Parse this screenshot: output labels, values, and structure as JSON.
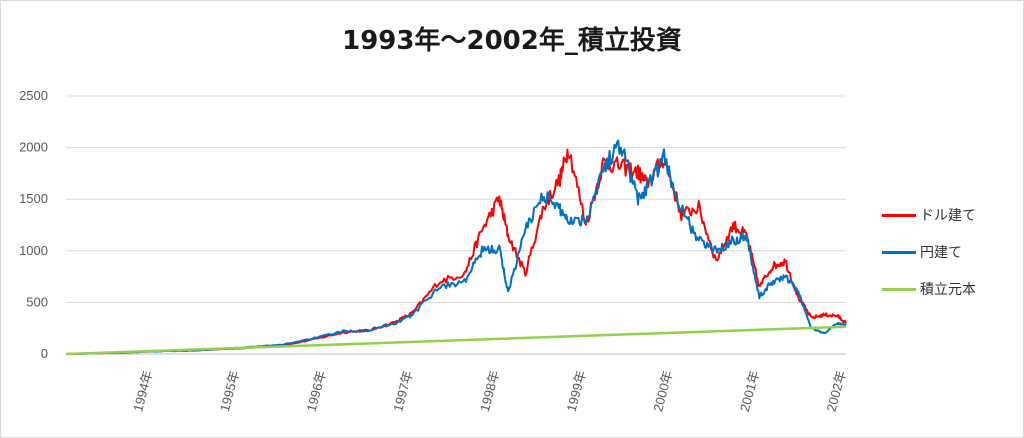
{
  "chart_data": {
    "type": "line",
    "title": "1993年〜2002年_積立投資",
    "xlabel": "",
    "ylabel": "",
    "ylim": [
      0,
      2500
    ],
    "yticks": [
      0,
      500,
      1000,
      1500,
      2000,
      2500
    ],
    "x_tick_labels": [
      "1994年",
      "1995年",
      "1996年",
      "1997年",
      "1998年",
      "1999年",
      "2000年",
      "2001年",
      "2002年"
    ],
    "grid": true,
    "legend_position": "right",
    "series": [
      {
        "name": "ドル建て",
        "color": "#ff0000",
        "x": [
          1993.0,
          1993.5,
          1994.0,
          1994.5,
          1995.0,
          1995.5,
          1995.9,
          1996.2,
          1996.5,
          1996.8,
          1997.0,
          1997.3,
          1997.6,
          1997.8,
          1998.0,
          1998.1,
          1998.3,
          1998.5,
          1998.7,
          1998.8,
          1999.0,
          1999.2,
          1999.4,
          1999.6,
          1999.7,
          1999.9,
          2000.1,
          2000.3,
          2000.5,
          2000.7,
          2000.85,
          2001.0,
          2001.15,
          2001.3,
          2001.45,
          2001.6,
          2001.75,
          2001.9,
          2002.0
        ],
        "values": [
          0,
          10,
          25,
          35,
          55,
          80,
          150,
          210,
          230,
          310,
          400,
          700,
          780,
          1200,
          1510,
          1150,
          780,
          1400,
          1700,
          2000,
          1250,
          1850,
          1820,
          1760,
          1650,
          1900,
          1350,
          1420,
          900,
          1250,
          1150,
          650,
          850,
          900,
          550,
          350,
          380,
          370,
          300
        ]
      },
      {
        "name": "円建て",
        "color": "#0070c0",
        "x": [
          1993.0,
          1993.5,
          1994.0,
          1994.5,
          1995.0,
          1995.5,
          1995.9,
          1996.2,
          1996.5,
          1996.8,
          1997.0,
          1997.3,
          1997.6,
          1997.8,
          1998.0,
          1998.1,
          1998.3,
          1998.5,
          1998.7,
          1998.8,
          1999.0,
          1999.2,
          1999.4,
          1999.6,
          1999.7,
          1999.9,
          2000.1,
          2000.3,
          2000.5,
          2000.7,
          2000.85,
          2001.0,
          2001.15,
          2001.3,
          2001.45,
          2001.6,
          2001.75,
          2001.9,
          2002.0
        ],
        "values": [
          0,
          10,
          25,
          35,
          60,
          90,
          160,
          220,
          230,
          300,
          380,
          650,
          700,
          1000,
          1020,
          600,
          1200,
          1550,
          1400,
          1300,
          1300,
          1800,
          2050,
          1500,
          1600,
          1900,
          1400,
          1100,
          1000,
          1100,
          1150,
          550,
          700,
          750,
          600,
          250,
          200,
          300,
          280
        ]
      },
      {
        "name": "積立元本",
        "color": "#92d050",
        "x": [
          1993.0,
          2002.0
        ],
        "values": [
          0,
          265
        ]
      }
    ]
  }
}
